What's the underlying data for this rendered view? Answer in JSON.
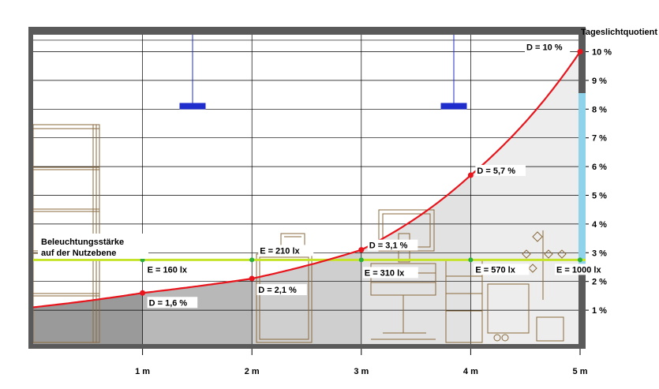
{
  "chart_data": {
    "type": "line",
    "right_axis_title": "Tageslichtquotient",
    "x": [
      0,
      1,
      2,
      3,
      4,
      5
    ],
    "x_tick_labels": [
      "1 m",
      "2 m",
      "3 m",
      "4 m",
      "5 m"
    ],
    "x_ticks": [
      1,
      2,
      3,
      4,
      5
    ],
    "xlim": [
      0,
      5
    ],
    "y_tick_labels": [
      "1 %",
      "2 %",
      "3 %",
      "4 %",
      "5 %",
      "6 %",
      "7 %",
      "8 %",
      "9 %",
      "10 %"
    ],
    "y_ticks": [
      1,
      2,
      3,
      4,
      5,
      6,
      7,
      8,
      9,
      10
    ],
    "ylim": [
      0,
      10
    ],
    "grid": true,
    "daylight_factor_points": [
      {
        "x": 1,
        "y": 1.6,
        "label": "D = 1,6 %"
      },
      {
        "x": 2,
        "y": 2.1,
        "label": "D = 2,1 %"
      },
      {
        "x": 3,
        "y": 3.1,
        "label": "D = 3,1 %"
      },
      {
        "x": 4,
        "y": 5.7,
        "label": "D = 5,7 %"
      },
      {
        "x": 5,
        "y": 10,
        "label": "D = 10 %"
      }
    ],
    "curve_start": {
      "x": 0,
      "y": 1.1
    },
    "work_plane": {
      "label_line1": "Beleuchtungsstärke",
      "label_line2": "auf der Nutzebene",
      "height_y": 2.75,
      "illuminance": [
        {
          "x": 1,
          "label": "E = 160 lx"
        },
        {
          "x": 2,
          "label": "E = 210 lx"
        },
        {
          "x": 3,
          "label": "E = 310 lx"
        },
        {
          "x": 4,
          "label": "E = 570 lx"
        },
        {
          "x": 5,
          "label": "E = 1000 lx"
        }
      ]
    },
    "colors": {
      "curve": "#e8151d",
      "work_plane": "#c4e32a",
      "work_plane_dot": "#2eae3a",
      "window": "#8fd3ea",
      "wall": "#5a5a5a",
      "furniture": "#8a6a3c",
      "lamp": "#1f2dcc"
    }
  }
}
